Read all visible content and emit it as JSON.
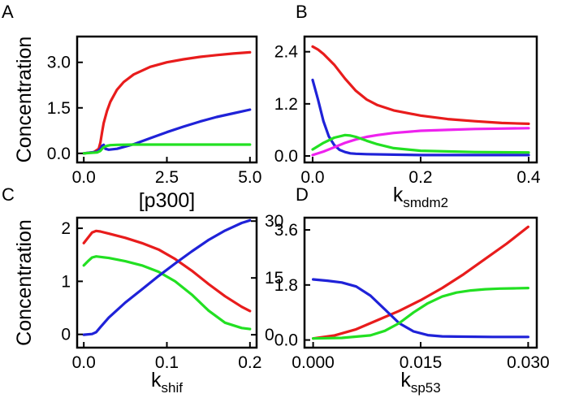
{
  "chart_data": [
    {
      "panel": "A",
      "type": "line",
      "ylabel": "Concentration",
      "xlabel": "[p300]",
      "xlabel_sub": "",
      "xlim": [
        -0.2,
        5.2
      ],
      "ylim": [
        -0.3,
        3.85
      ],
      "xticks": [
        0.0,
        2.5,
        5.0
      ],
      "xtick_labels": [
        "0.0",
        "2.5",
        "5.0"
      ],
      "yticks": [
        0.0,
        1.5,
        3.0
      ],
      "ytick_labels": [
        "0.0",
        "1.5",
        "3.0"
      ],
      "series": [
        {
          "color": "#e81c1c",
          "x": [
            0,
            0.3,
            0.45,
            0.5,
            0.55,
            0.6,
            0.7,
            0.8,
            1.0,
            1.2,
            1.5,
            2.0,
            2.5,
            3.0,
            3.5,
            4.0,
            4.5,
            5.0
          ],
          "y": [
            0,
            0.04,
            0.15,
            0.35,
            0.7,
            1.0,
            1.4,
            1.7,
            2.1,
            2.35,
            2.6,
            2.85,
            3.0,
            3.1,
            3.18,
            3.24,
            3.29,
            3.33
          ]
        },
        {
          "color": "#1f22d8",
          "x": [
            0,
            0.4,
            0.5,
            0.55,
            0.6,
            0.65,
            0.75,
            1.0,
            1.5,
            2.0,
            2.5,
            3.0,
            3.5,
            4.0,
            4.5,
            5.0
          ],
          "y": [
            0,
            0.05,
            0.15,
            0.25,
            0.28,
            0.15,
            0.12,
            0.15,
            0.3,
            0.5,
            0.7,
            0.88,
            1.05,
            1.2,
            1.32,
            1.44
          ]
        },
        {
          "color": "#22e022",
          "x": [
            0,
            0.4,
            0.5,
            0.55,
            0.6,
            0.7,
            0.8,
            1.0,
            1.5,
            2.0,
            2.5,
            3.0,
            3.5,
            4.0,
            4.5,
            5.0
          ],
          "y": [
            0,
            0.03,
            0.08,
            0.15,
            0.2,
            0.25,
            0.27,
            0.28,
            0.29,
            0.29,
            0.29,
            0.29,
            0.29,
            0.29,
            0.29,
            0.29
          ]
        }
      ]
    },
    {
      "panel": "B",
      "type": "line",
      "ylabel": "",
      "xlabel": "k",
      "xlabel_sub": "smdm2",
      "xlim": [
        -0.015,
        0.415
      ],
      "ylim": [
        -0.15,
        2.75
      ],
      "xticks": [
        0.0,
        0.2,
        0.4
      ],
      "xtick_labels": [
        "0.0",
        "0.2",
        "0.4"
      ],
      "yticks": [
        0.0,
        1.2,
        2.4
      ],
      "ytick_labels": [
        "0.0",
        "1.2",
        "2.4"
      ],
      "series": [
        {
          "color": "#e81c1c",
          "x": [
            0,
            0.01,
            0.02,
            0.04,
            0.06,
            0.08,
            0.1,
            0.12,
            0.15,
            0.2,
            0.25,
            0.3,
            0.35,
            0.4
          ],
          "y": [
            2.52,
            2.45,
            2.35,
            2.1,
            1.78,
            1.5,
            1.3,
            1.17,
            1.05,
            0.93,
            0.85,
            0.8,
            0.76,
            0.74
          ]
        },
        {
          "color": "#1f22d8",
          "x": [
            0,
            0.01,
            0.02,
            0.03,
            0.04,
            0.05,
            0.06,
            0.07,
            0.08,
            0.1,
            0.15,
            0.2,
            0.3,
            0.4
          ],
          "y": [
            1.75,
            1.3,
            0.8,
            0.45,
            0.25,
            0.14,
            0.09,
            0.06,
            0.05,
            0.04,
            0.03,
            0.02,
            0.02,
            0.02
          ]
        },
        {
          "color": "#ee22ee",
          "x": [
            0,
            0.02,
            0.04,
            0.06,
            0.08,
            0.1,
            0.12,
            0.15,
            0.2,
            0.25,
            0.3,
            0.35,
            0.4
          ],
          "y": [
            0.02,
            0.1,
            0.2,
            0.3,
            0.38,
            0.44,
            0.48,
            0.53,
            0.58,
            0.6,
            0.62,
            0.63,
            0.64
          ]
        },
        {
          "color": "#22e022",
          "x": [
            0,
            0.02,
            0.04,
            0.06,
            0.07,
            0.08,
            0.1,
            0.12,
            0.15,
            0.2,
            0.3,
            0.4
          ],
          "y": [
            0.15,
            0.3,
            0.42,
            0.48,
            0.47,
            0.44,
            0.35,
            0.27,
            0.18,
            0.12,
            0.09,
            0.08
          ]
        }
      ]
    },
    {
      "panel": "C",
      "type": "line",
      "ylabel": "Concentration",
      "xlabel": "k",
      "xlabel_sub": "shif",
      "xlim": [
        -0.008,
        0.208
      ],
      "ylim": [
        -0.25,
        2.2
      ],
      "y2lim": [
        -3.4,
        30.9
      ],
      "xticks": [
        0.0,
        0.1,
        0.2
      ],
      "xtick_labels": [
        "0.0",
        "0.1",
        "0.2"
      ],
      "yticks": [
        0,
        1,
        2
      ],
      "ytick_labels": [
        "0",
        "1",
        "2"
      ],
      "y2ticks": [
        0,
        15,
        30
      ],
      "y2tick_labels": [
        "0",
        "15",
        "30"
      ],
      "series": [
        {
          "color": "#e81c1c",
          "axis": "left",
          "x": [
            0,
            0.005,
            0.01,
            0.015,
            0.02,
            0.03,
            0.05,
            0.07,
            0.09,
            0.11,
            0.13,
            0.15,
            0.17,
            0.19,
            0.2
          ],
          "y": [
            1.72,
            1.82,
            1.92,
            1.95,
            1.94,
            1.9,
            1.82,
            1.72,
            1.6,
            1.42,
            1.2,
            0.95,
            0.72,
            0.52,
            0.44
          ]
        },
        {
          "color": "#22e022",
          "axis": "left",
          "x": [
            0,
            0.005,
            0.01,
            0.015,
            0.02,
            0.03,
            0.05,
            0.07,
            0.09,
            0.11,
            0.13,
            0.15,
            0.17,
            0.19,
            0.2
          ],
          "y": [
            1.3,
            1.38,
            1.45,
            1.47,
            1.46,
            1.44,
            1.38,
            1.3,
            1.18,
            1.0,
            0.75,
            0.45,
            0.22,
            0.12,
            0.1
          ]
        },
        {
          "color": "#1f22d8",
          "axis": "right",
          "x": [
            0,
            0.01,
            0.015,
            0.02,
            0.03,
            0.05,
            0.07,
            0.09,
            0.11,
            0.13,
            0.15,
            0.17,
            0.19,
            0.2
          ],
          "y": [
            0,
            0.2,
            0.7,
            2.0,
            4.5,
            8.5,
            12.0,
            15.5,
            18.8,
            22.0,
            25.0,
            27.5,
            29.5,
            30.2
          ]
        }
      ]
    },
    {
      "panel": "D",
      "type": "line",
      "ylabel": "",
      "xlabel": "k",
      "xlabel_sub": "sp53",
      "xlim": [
        -0.0012,
        0.0312
      ],
      "ylim": [
        -0.25,
        4.0
      ],
      "xticks": [
        0.0,
        0.015,
        0.03
      ],
      "xtick_labels": [
        "0.000",
        "0.015",
        "0.030"
      ],
      "yticks": [
        0.0,
        1.8,
        3.6
      ],
      "ytick_labels": [
        "0.0",
        "1.8",
        "3.6"
      ],
      "series": [
        {
          "color": "#e81c1c",
          "x": [
            0,
            0.003,
            0.006,
            0.009,
            0.012,
            0.015,
            0.018,
            0.021,
            0.024,
            0.027,
            0.03
          ],
          "y": [
            0.05,
            0.15,
            0.35,
            0.65,
            0.95,
            1.3,
            1.7,
            2.15,
            2.65,
            3.15,
            3.7
          ]
        },
        {
          "color": "#1f22d8",
          "x": [
            0,
            0.002,
            0.004,
            0.006,
            0.008,
            0.01,
            0.012,
            0.014,
            0.016,
            0.018,
            0.02,
            0.025,
            0.03
          ],
          "y": [
            1.98,
            1.94,
            1.88,
            1.75,
            1.45,
            1.0,
            0.55,
            0.28,
            0.16,
            0.12,
            0.11,
            0.1,
            0.1
          ]
        },
        {
          "color": "#22e022",
          "x": [
            0,
            0.004,
            0.008,
            0.01,
            0.012,
            0.014,
            0.016,
            0.018,
            0.02,
            0.022,
            0.024,
            0.026,
            0.028,
            0.03
          ],
          "y": [
            0.05,
            0.07,
            0.15,
            0.3,
            0.55,
            0.9,
            1.2,
            1.42,
            1.55,
            1.62,
            1.66,
            1.68,
            1.69,
            1.7
          ]
        }
      ]
    }
  ]
}
